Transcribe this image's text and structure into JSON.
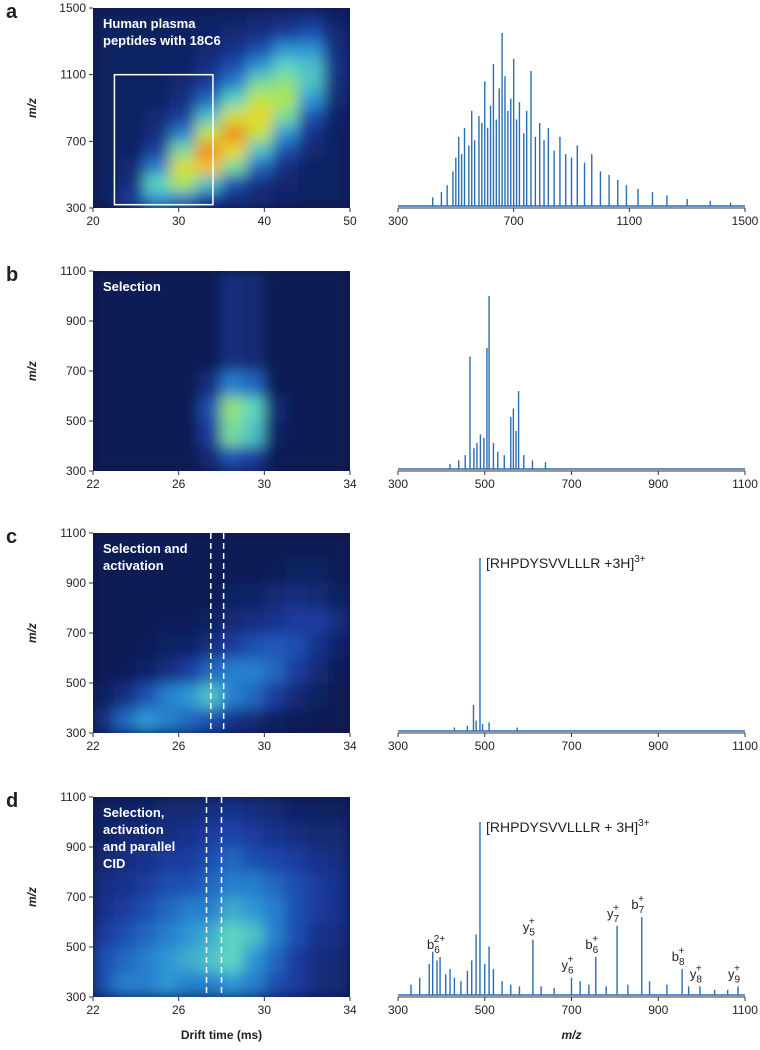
{
  "chart_data": [
    {
      "type": "heatmap",
      "panel": "a",
      "label_lines": [
        "Human plasma",
        "peptides with 18C6"
      ],
      "ylabel": "m/z",
      "xlim": [
        20,
        50
      ],
      "xticks": [
        20,
        30,
        40,
        50
      ],
      "ylim": [
        300,
        1500
      ],
      "yticks": [
        300,
        700,
        1100,
        1500
      ],
      "colormap": [
        "#0b1442",
        "#1c3fa8",
        "#2a8fd6",
        "#5fd6c0",
        "#b4e84a",
        "#f6d21e",
        "#e3261c"
      ],
      "box": {
        "x": [
          22.5,
          34
        ],
        "y": [
          320,
          1100
        ]
      },
      "z": [
        [
          0.05,
          0.15,
          0.35,
          0.3,
          0.15,
          0.1,
          0.08,
          0.06,
          0.05,
          0.05
        ],
        [
          0.05,
          0.1,
          0.5,
          0.65,
          0.45,
          0.2,
          0.1,
          0.07,
          0.05,
          0.05
        ],
        [
          0.05,
          0.08,
          0.3,
          0.75,
          0.85,
          0.55,
          0.25,
          0.1,
          0.06,
          0.05
        ],
        [
          0.05,
          0.06,
          0.15,
          0.55,
          0.9,
          0.8,
          0.45,
          0.2,
          0.08,
          0.05
        ],
        [
          0.05,
          0.05,
          0.1,
          0.3,
          0.7,
          0.9,
          0.7,
          0.35,
          0.12,
          0.05
        ],
        [
          0.05,
          0.05,
          0.08,
          0.15,
          0.45,
          0.75,
          0.8,
          0.55,
          0.2,
          0.06
        ],
        [
          0.05,
          0.05,
          0.06,
          0.1,
          0.25,
          0.5,
          0.7,
          0.65,
          0.35,
          0.08
        ],
        [
          0.05,
          0.05,
          0.05,
          0.08,
          0.15,
          0.3,
          0.55,
          0.6,
          0.45,
          0.1
        ],
        [
          0.05,
          0.05,
          0.05,
          0.06,
          0.1,
          0.2,
          0.35,
          0.5,
          0.45,
          0.12
        ],
        [
          0.05,
          0.05,
          0.05,
          0.05,
          0.08,
          0.12,
          0.2,
          0.35,
          0.35,
          0.1
        ],
        [
          0.05,
          0.05,
          0.05,
          0.05,
          0.06,
          0.08,
          0.1,
          0.15,
          0.2,
          0.08
        ],
        [
          0.05,
          0.05,
          0.05,
          0.05,
          0.05,
          0.06,
          0.07,
          0.08,
          0.1,
          0.06
        ]
      ]
    },
    {
      "type": "stem",
      "color": "#2a6db5",
      "xlim": [
        300,
        1500
      ],
      "xticks": [
        300,
        700,
        1100,
        1500
      ],
      "ylim": [
        0,
        100
      ],
      "x": [
        420,
        450,
        470,
        490,
        500,
        510,
        520,
        530,
        545,
        555,
        565,
        580,
        590,
        600,
        610,
        620,
        630,
        640,
        650,
        660,
        670,
        680,
        690,
        700,
        710,
        720,
        735,
        745,
        760,
        775,
        790,
        805,
        820,
        840,
        860,
        880,
        900,
        920,
        945,
        970,
        1000,
        1030,
        1060,
        1090,
        1130,
        1180,
        1230,
        1300,
        1380,
        1450
      ],
      "values": [
        5,
        8,
        12,
        20,
        28,
        40,
        30,
        45,
        35,
        55,
        38,
        52,
        48,
        72,
        45,
        58,
        82,
        50,
        68,
        100,
        75,
        55,
        62,
        85,
        50,
        60,
        42,
        55,
        78,
        40,
        48,
        38,
        45,
        32,
        40,
        30,
        28,
        35,
        25,
        30,
        20,
        18,
        15,
        12,
        10,
        8,
        6,
        4,
        3,
        2
      ]
    },
    {
      "type": "heatmap",
      "panel": "b",
      "label_lines": [
        "Selection"
      ],
      "ylabel": "m/z",
      "xlim": [
        22,
        34
      ],
      "xticks": [
        22,
        26,
        30,
        34
      ],
      "ylim": [
        300,
        1100
      ],
      "yticks": [
        300,
        500,
        700,
        900,
        1100
      ],
      "colormap": [
        "#0b1442",
        "#1c3fa8",
        "#2a8fd6",
        "#5fd6c0",
        "#b4e84a",
        "#f6d21e",
        "#e3261c"
      ],
      "z": [
        [
          0.03,
          0.03,
          0.03,
          0.03,
          0.03,
          0.08,
          0.2,
          0.15,
          0.03,
          0.03,
          0.03,
          0.03
        ],
        [
          0.03,
          0.03,
          0.03,
          0.03,
          0.03,
          0.15,
          0.55,
          0.45,
          0.06,
          0.03,
          0.03,
          0.03
        ],
        [
          0.03,
          0.03,
          0.03,
          0.03,
          0.03,
          0.2,
          0.6,
          0.5,
          0.08,
          0.03,
          0.03,
          0.03
        ],
        [
          0.03,
          0.03,
          0.03,
          0.03,
          0.03,
          0.1,
          0.3,
          0.25,
          0.03,
          0.03,
          0.03,
          0.03
        ],
        [
          0.03,
          0.03,
          0.03,
          0.03,
          0.03,
          0.03,
          0.1,
          0.08,
          0.03,
          0.03,
          0.03,
          0.03
        ],
        [
          0.03,
          0.03,
          0.03,
          0.03,
          0.03,
          0.03,
          0.1,
          0.08,
          0.03,
          0.03,
          0.03,
          0.03
        ],
        [
          0.03,
          0.03,
          0.03,
          0.03,
          0.03,
          0.03,
          0.1,
          0.08,
          0.03,
          0.03,
          0.03,
          0.03
        ],
        [
          0.03,
          0.03,
          0.03,
          0.03,
          0.03,
          0.03,
          0.1,
          0.08,
          0.03,
          0.03,
          0.03,
          0.03
        ]
      ]
    },
    {
      "type": "stem",
      "color": "#2a6db5",
      "xlim": [
        300,
        1100
      ],
      "xticks": [
        300,
        500,
        700,
        900,
        1100
      ],
      "ylim": [
        0,
        100
      ],
      "x": [
        420,
        440,
        455,
        466,
        475,
        482,
        490,
        498,
        505,
        510,
        520,
        530,
        545,
        560,
        566,
        572,
        578,
        590,
        610,
        640
      ],
      "values": [
        3,
        5,
        8,
        65,
        12,
        15,
        20,
        18,
        70,
        100,
        15,
        10,
        8,
        30,
        35,
        22,
        45,
        8,
        5,
        4
      ]
    },
    {
      "type": "heatmap",
      "panel": "c",
      "label_lines": [
        "Selection and",
        "activation"
      ],
      "ylabel": "m/z",
      "xlim": [
        22,
        34
      ],
      "xticks": [
        22,
        26,
        30,
        34
      ],
      "ylim": [
        300,
        1100
      ],
      "yticks": [
        300,
        500,
        700,
        900,
        1100
      ],
      "colormap": [
        "#0b1442",
        "#1c3fa8",
        "#2a8fd6",
        "#5fd6c0",
        "#b4e84a",
        "#f6d21e",
        "#e3261c"
      ],
      "dashes": [
        27.5,
        28.1
      ],
      "z": [
        [
          0.1,
          0.25,
          0.35,
          0.3,
          0.25,
          0.2,
          0.12,
          0.08,
          0.05,
          0.04,
          0.03,
          0.03
        ],
        [
          0.05,
          0.1,
          0.2,
          0.3,
          0.35,
          0.45,
          0.3,
          0.25,
          0.15,
          0.08,
          0.05,
          0.03
        ],
        [
          0.03,
          0.04,
          0.06,
          0.1,
          0.15,
          0.25,
          0.3,
          0.3,
          0.25,
          0.15,
          0.08,
          0.04
        ],
        [
          0.03,
          0.03,
          0.04,
          0.05,
          0.06,
          0.1,
          0.15,
          0.2,
          0.22,
          0.2,
          0.12,
          0.06
        ],
        [
          0.03,
          0.03,
          0.03,
          0.04,
          0.04,
          0.05,
          0.08,
          0.1,
          0.12,
          0.15,
          0.15,
          0.1
        ],
        [
          0.03,
          0.03,
          0.03,
          0.03,
          0.03,
          0.03,
          0.05,
          0.06,
          0.08,
          0.1,
          0.08,
          0.05
        ],
        [
          0.03,
          0.03,
          0.03,
          0.03,
          0.03,
          0.03,
          0.03,
          0.03,
          0.04,
          0.05,
          0.05,
          0.04
        ],
        [
          0.03,
          0.03,
          0.03,
          0.03,
          0.03,
          0.03,
          0.03,
          0.03,
          0.03,
          0.03,
          0.03,
          0.03
        ]
      ]
    },
    {
      "type": "stem",
      "color": "#2a6db5",
      "xlim": [
        300,
        1100
      ],
      "xticks": [
        300,
        500,
        700,
        900,
        1100
      ],
      "ylim": [
        0,
        100
      ],
      "annotation": {
        "text": "[RHPDYSVVLLLR +3H]",
        "sup": "3+"
      },
      "x": [
        430,
        460,
        474,
        480,
        489,
        495,
        510,
        575
      ],
      "values": [
        2,
        3,
        15,
        6,
        100,
        4,
        5,
        2
      ]
    },
    {
      "type": "heatmap",
      "panel": "d",
      "label_lines": [
        "Selection,",
        "activation",
        "and parallel",
        "CID"
      ],
      "ylabel": "m/z",
      "xlabel": "Drift time (ms)",
      "xlim": [
        22,
        34
      ],
      "xticks": [
        22,
        26,
        30,
        34
      ],
      "ylim": [
        300,
        1100
      ],
      "yticks": [
        300,
        500,
        700,
        900,
        1100
      ],
      "colormap": [
        "#0b1442",
        "#1c3fa8",
        "#2a8fd6",
        "#5fd6c0",
        "#b4e84a",
        "#f6d21e",
        "#e3261c"
      ],
      "dashes": [
        27.3,
        28.0
      ],
      "z": [
        [
          0.2,
          0.3,
          0.3,
          0.35,
          0.3,
          0.3,
          0.35,
          0.3,
          0.2,
          0.15,
          0.1,
          0.08
        ],
        [
          0.2,
          0.25,
          0.3,
          0.35,
          0.4,
          0.45,
          0.5,
          0.35,
          0.25,
          0.15,
          0.1,
          0.08
        ],
        [
          0.15,
          0.2,
          0.25,
          0.3,
          0.35,
          0.4,
          0.5,
          0.45,
          0.3,
          0.2,
          0.12,
          0.1
        ],
        [
          0.12,
          0.15,
          0.2,
          0.25,
          0.3,
          0.3,
          0.4,
          0.35,
          0.3,
          0.2,
          0.15,
          0.12
        ],
        [
          0.1,
          0.12,
          0.15,
          0.2,
          0.2,
          0.25,
          0.3,
          0.3,
          0.25,
          0.2,
          0.15,
          0.12
        ],
        [
          0.08,
          0.1,
          0.12,
          0.15,
          0.15,
          0.2,
          0.25,
          0.2,
          0.18,
          0.15,
          0.12,
          0.1
        ],
        [
          0.06,
          0.08,
          0.08,
          0.1,
          0.12,
          0.15,
          0.18,
          0.15,
          0.12,
          0.1,
          0.08,
          0.08
        ],
        [
          0.05,
          0.06,
          0.06,
          0.08,
          0.08,
          0.1,
          0.12,
          0.1,
          0.08,
          0.06,
          0.05,
          0.05
        ]
      ]
    },
    {
      "type": "stem",
      "color": "#2a6db5",
      "xlim": [
        300,
        1100
      ],
      "xticks": [
        300,
        500,
        700,
        900,
        1100
      ],
      "ylim": [
        0,
        100
      ],
      "xlabel": "m/z",
      "annotation": {
        "text": "[RHPDYSVVLLLR + 3H]",
        "sup": "3+"
      },
      "peak_labels": [
        {
          "text": "b",
          "sub": "6",
          "sup": "2+",
          "x": 397
        },
        {
          "text": "y",
          "sub": "5",
          "sup": "+",
          "x": 611
        },
        {
          "text": "y",
          "sub": "6",
          "sup": "+",
          "x": 700
        },
        {
          "text": "b",
          "sub": "6",
          "sup": "+",
          "x": 756
        },
        {
          "text": "y",
          "sub": "7",
          "sup": "+",
          "x": 805
        },
        {
          "text": "b",
          "sub": "7",
          "sup": "+",
          "x": 862
        },
        {
          "text": "b",
          "sub": "8",
          "sup": "+",
          "x": 955
        },
        {
          "text": "y",
          "sub": "8",
          "sup": "+",
          "x": 996
        },
        {
          "text": "y",
          "sub": "9",
          "sup": "+",
          "x": 1084
        }
      ],
      "x": [
        330,
        350,
        372,
        380,
        390,
        397,
        410,
        420,
        430,
        445,
        460,
        470,
        480,
        489,
        500,
        510,
        520,
        540,
        560,
        580,
        611,
        630,
        660,
        700,
        720,
        740,
        756,
        780,
        805,
        830,
        862,
        880,
        920,
        955,
        970,
        996,
        1030,
        1060,
        1084
      ],
      "values": [
        6,
        10,
        18,
        25,
        20,
        22,
        12,
        15,
        10,
        8,
        14,
        20,
        35,
        100,
        18,
        28,
        15,
        8,
        6,
        5,
        32,
        5,
        4,
        10,
        8,
        6,
        22,
        5,
        40,
        6,
        45,
        8,
        6,
        15,
        5,
        5,
        3,
        3,
        5
      ]
    }
  ]
}
